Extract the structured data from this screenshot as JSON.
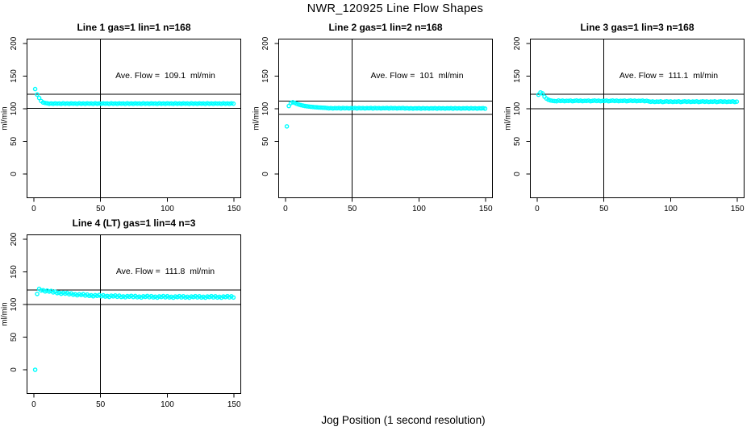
{
  "figure": {
    "title": "NWR_120925  Line Flow Shapes",
    "xlabel": "Jog Position (1 second resolution)",
    "point_color": "#00FFFF",
    "axis_color": "#000000",
    "background": "#FFFFFF"
  },
  "chart_data": [
    {
      "type": "scatter",
      "title": "Line 1 gas=1 lin=1 n=168",
      "annotation": "Ave. Flow =  109.1  ml/min",
      "ave_flow_ml_min": 109.1,
      "ylabel": "ml/min",
      "x_ticks": [
        0,
        50,
        100,
        150
      ],
      "y_ticks": [
        0,
        50,
        100,
        150,
        200
      ],
      "xlim": [
        -5.1,
        155.0
      ],
      "ylim": [
        -36.4,
        206.8
      ],
      "vline_x": 50,
      "upper_line": 122.5,
      "lower_line": 100.5,
      "marker": "open-circle",
      "x_start": 1,
      "x_step": 1.5,
      "values": [
        130.2,
        121.8,
        116.5,
        111.8,
        109.6,
        108.8,
        108.4,
        107.7,
        108.2,
        107.6,
        108.3,
        107.8,
        108.1,
        107.5,
        108.4,
        107.7,
        108.2,
        107.6,
        108.3,
        107.8,
        108.1,
        107.5,
        108.4,
        107.7,
        108.2,
        107.6,
        108.3,
        107.8,
        108.1,
        107.5,
        108.4,
        107.7,
        108.2,
        107.6,
        108.3,
        107.8,
        108.1,
        107.5,
        108.4,
        107.7,
        108.2,
        107.6,
        108.3,
        107.8,
        108.1,
        107.5,
        108.4,
        107.7,
        108.2,
        107.6,
        108.3,
        107.8,
        108.1,
        107.5,
        108.4,
        107.7,
        108.2,
        107.6,
        108.3,
        107.8,
        108.1,
        107.5,
        108.4,
        107.7,
        108.2,
        107.6,
        108.3,
        107.8,
        108.1,
        107.5,
        108.4,
        107.7,
        108.2,
        107.6,
        108.3,
        107.8,
        108.1,
        107.5,
        108.4,
        107.7,
        108.2,
        107.6,
        108.3,
        107.8,
        108.1,
        107.5,
        108.4,
        107.7,
        108.2,
        107.6,
        108.3,
        107.8,
        108.1,
        107.5,
        108.4,
        107.7,
        108.2,
        107.6,
        108.3,
        107.8
      ]
    },
    {
      "type": "scatter",
      "title": "Line 2 gas=1 lin=2 n=168",
      "annotation": "Ave. Flow =  101  ml/min",
      "ave_flow_ml_min": 101,
      "ylabel": "ml/min",
      "x_ticks": [
        0,
        50,
        100,
        150
      ],
      "y_ticks": [
        0,
        50,
        100,
        150,
        200
      ],
      "xlim": [
        -5.1,
        155.0
      ],
      "ylim": [
        -36.4,
        206.8
      ],
      "vline_x": 50,
      "upper_line": 112.0,
      "lower_line": 91.5,
      "marker": "open-circle",
      "x_start": 1,
      "x_step": 1.5,
      "values": [
        73.0,
        104.2,
        108.6,
        110.0,
        108.9,
        107.6,
        106.5,
        105.6,
        104.9,
        104.3,
        103.8,
        103.4,
        103.0,
        102.7,
        102.4,
        102.2,
        102.0,
        101.8,
        101.6,
        101.5,
        101.2,
        100.7,
        101.1,
        100.6,
        101.0,
        100.8,
        101.2,
        100.5,
        101.2,
        100.7,
        101.1,
        100.6,
        101.0,
        100.8,
        101.2,
        100.5,
        101.2,
        100.7,
        101.1,
        100.6,
        101.0,
        100.8,
        101.2,
        100.5,
        101.2,
        100.7,
        101.1,
        100.6,
        101.0,
        100.8,
        101.2,
        100.5,
        101.2,
        100.7,
        101.1,
        100.6,
        101.0,
        100.8,
        101.2,
        100.5,
        100.9,
        100.4,
        100.8,
        100.3,
        100.7,
        100.5,
        100.9,
        100.2,
        100.9,
        100.4,
        100.8,
        100.3,
        100.7,
        100.5,
        100.9,
        100.2,
        100.9,
        100.4,
        100.8,
        100.3,
        100.7,
        100.5,
        100.9,
        100.2,
        100.9,
        100.4,
        100.8,
        100.3,
        100.7,
        100.5,
        100.9,
        100.2,
        100.9,
        100.4,
        100.8,
        100.3,
        100.7,
        100.5,
        100.9,
        100.2
      ]
    },
    {
      "type": "scatter",
      "title": "Line 3 gas=1 lin=3 n=168",
      "annotation": "Ave. Flow =  111.1  ml/min",
      "ave_flow_ml_min": 111.1,
      "ylabel": "ml/min",
      "x_ticks": [
        0,
        50,
        100,
        150
      ],
      "y_ticks": [
        0,
        50,
        100,
        150,
        200
      ],
      "xlim": [
        -5.1,
        155.0
      ],
      "ylim": [
        -36.4,
        206.8
      ],
      "vline_x": 50,
      "upper_line": 122.3,
      "lower_line": 100.3,
      "marker": "open-circle",
      "x_start": 1,
      "x_step": 1.5,
      "values": [
        121.5,
        125.0,
        123.5,
        118.5,
        115.5,
        113.8,
        112.8,
        112.2,
        111.8,
        111.5,
        112.6,
        111.9,
        112.4,
        111.7,
        112.2,
        112.0,
        112.5,
        111.6,
        112.1,
        112.6,
        111.9,
        112.4,
        111.7,
        112.2,
        112.0,
        112.5,
        111.6,
        112.1,
        112.6,
        111.9,
        112.4,
        111.7,
        112.2,
        112.0,
        112.5,
        111.6,
        112.1,
        112.6,
        111.9,
        112.4,
        111.7,
        112.2,
        112.0,
        112.5,
        111.6,
        112.1,
        112.6,
        111.9,
        112.4,
        111.7,
        112.2,
        112.0,
        112.5,
        111.6,
        112.1,
        111.4,
        110.7,
        111.2,
        110.5,
        111.0,
        110.8,
        111.3,
        110.4,
        110.9,
        111.4,
        110.7,
        111.2,
        110.5,
        111.0,
        110.8,
        111.3,
        110.4,
        110.9,
        111.4,
        110.7,
        111.2,
        110.5,
        111.0,
        110.8,
        111.3,
        110.4,
        110.9,
        111.4,
        110.7,
        111.2,
        110.5,
        111.0,
        110.8,
        111.3,
        110.4,
        110.9,
        111.4,
        110.7,
        111.2,
        110.5,
        111.0,
        110.8,
        111.3,
        110.4,
        110.9
      ]
    },
    {
      "type": "scatter",
      "title": "Line 4 (LT) gas=1 lin=4 n=3",
      "annotation": "Ave. Flow =  111.8  ml/min",
      "ave_flow_ml_min": 111.8,
      "ylabel": "ml/min",
      "x_ticks": [
        0,
        50,
        100,
        150
      ],
      "y_ticks": [
        0,
        50,
        100,
        150,
        200
      ],
      "xlim": [
        -5.1,
        155.0
      ],
      "ylim": [
        -36.4,
        206.8
      ],
      "vline_x": 50,
      "upper_line": 122.5,
      "lower_line": 100.0,
      "marker": "open-circle",
      "x_start": 1,
      "x_step": 1.5,
      "values": [
        0,
        116.2,
        124.0,
        121.6,
        121.9,
        120.1,
        121.3,
        119.9,
        120.8,
        118.6,
        119.7,
        117.5,
        118.1,
        116.5,
        118.0,
        116.7,
        117.8,
        115.7,
        117.0,
        115.0,
        115.7,
        114.2,
        115.7,
        114.6,
        115.8,
        113.8,
        115.3,
        113.3,
        114.1,
        112.7,
        114.3,
        113.3,
        114.6,
        112.6,
        114.1,
        112.2,
        113.1,
        111.7,
        113.5,
        112.5,
        113.8,
        111.9,
        113.5,
        111.6,
        112.5,
        111.2,
        112.9,
        112.0,
        113.3,
        111.5,
        113.0,
        111.2,
        112.2,
        110.8,
        112.6,
        111.7,
        113.0,
        111.2,
        112.8,
        111.0,
        112.0,
        110.6,
        112.4,
        111.5,
        112.9,
        111.1,
        112.7,
        110.9,
        111.8,
        110.5,
        112.3,
        111.4,
        112.8,
        111.0,
        112.6,
        110.8,
        111.8,
        110.5,
        112.3,
        111.4,
        112.8,
        111.0,
        112.6,
        110.8,
        111.8,
        110.5,
        112.3,
        111.4,
        112.8,
        111.0,
        112.6,
        110.8,
        111.8,
        110.5,
        112.3,
        111.4,
        112.8,
        111.0,
        112.6,
        110.8
      ]
    }
  ]
}
